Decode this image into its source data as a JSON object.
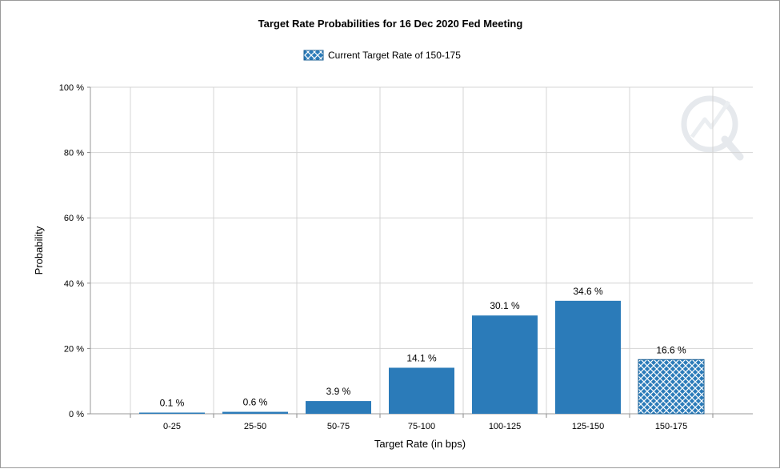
{
  "chart_data": {
    "type": "bar",
    "title": "Target Rate Probabilities for 16 Dec 2020 Fed Meeting",
    "legend": {
      "label": "Current Target Rate of 150-175",
      "placement": "top-center"
    },
    "xlabel": "Target Rate (in bps)",
    "ylabel": "Probability",
    "ylim": [
      0,
      100
    ],
    "yticks": [
      "0 %",
      "20 %",
      "40 %",
      "60 %",
      "80 %",
      "100 %"
    ],
    "grid": true,
    "categories": [
      "0-25",
      "25-50",
      "50-75",
      "75-100",
      "100-125",
      "125-150",
      "150-175"
    ],
    "values": [
      0.1,
      0.6,
      3.9,
      14.1,
      30.1,
      34.6,
      16.6
    ],
    "data_labels": [
      "0.1 %",
      "0.6 %",
      "3.9 %",
      "14.1 %",
      "30.1 %",
      "34.6 %",
      "16.6 %"
    ],
    "highlighted_category": "150-175",
    "colors": {
      "bar": "#2b7bb9",
      "highlight_fill": "#2b7bb9",
      "highlight_pattern": "#ffffff",
      "grid": "#d4d4d4"
    }
  }
}
